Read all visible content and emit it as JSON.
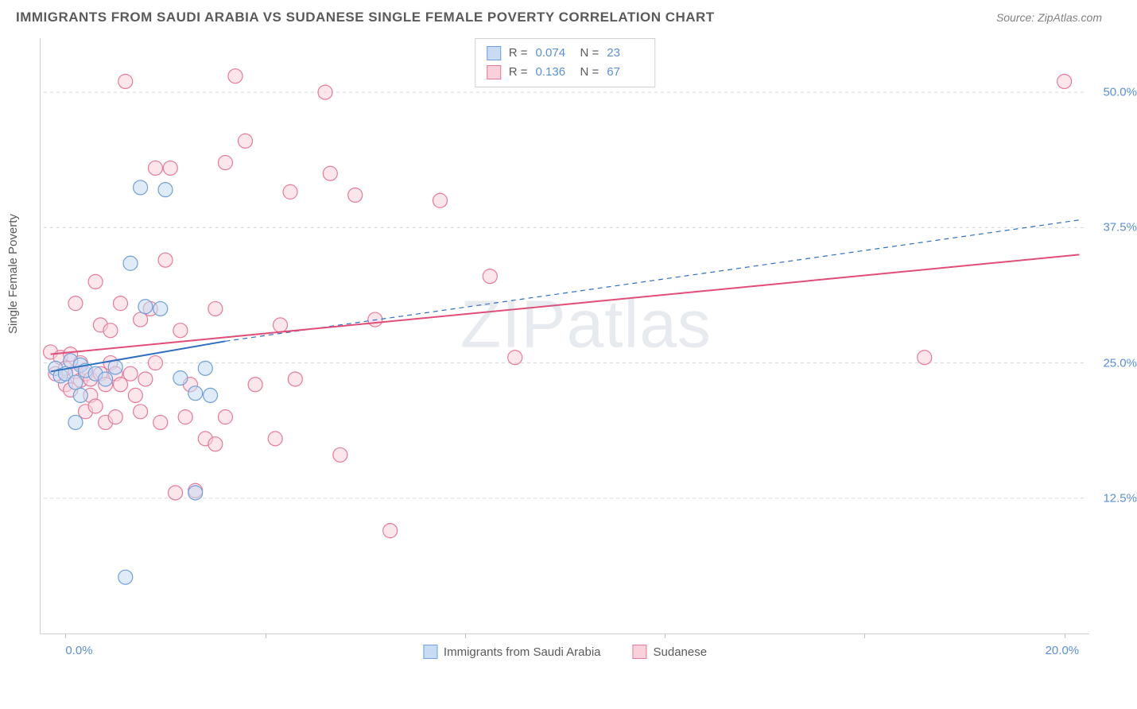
{
  "header": {
    "title": "IMMIGRANTS FROM SAUDI ARABIA VS SUDANESE SINGLE FEMALE POVERTY CORRELATION CHART",
    "source_prefix": "Source: ",
    "source_name": "ZipAtlas.com"
  },
  "watermark": "ZIPatlas",
  "chart": {
    "type": "scatter",
    "ylabel": "Single Female Poverty",
    "background_color": "#ffffff",
    "grid_color": "#d8d8d8",
    "axis_color": "#d0d0d0",
    "label_color": "#5a5a5a",
    "tick_label_color": "#5b8fd6",
    "title_fontsize": 17,
    "label_fontsize": 15,
    "x_domain": [
      -0.5,
      20.5
    ],
    "y_domain": [
      0,
      55
    ],
    "y_gridlines": [
      12.5,
      25.0,
      37.5,
      50.0
    ],
    "y_tick_labels": [
      "12.5%",
      "25.0%",
      "37.5%",
      "50.0%"
    ],
    "x_ticks": [
      0,
      4,
      8,
      12,
      16,
      20
    ],
    "x_tick_labels": {
      "0": "0.0%",
      "20": "20.0%"
    },
    "point_radius": 9,
    "point_opacity": 0.55,
    "series": [
      {
        "name": "Immigrants from Saudi Arabia",
        "fill": "#c7dbf2",
        "stroke": "#6fa0da",
        "r_value": "0.074",
        "n_value": "23",
        "trend": {
          "solid": {
            "x1": -0.3,
            "y1": 24.2,
            "x2": 3.2,
            "y2": 27.0
          },
          "dashed": {
            "x1": 3.2,
            "y1": 27.0,
            "x2": 20.3,
            "y2": 38.2
          },
          "color": "#2f6fc0",
          "width": 2
        },
        "points": [
          [
            -0.2,
            24.5
          ],
          [
            -0.1,
            23.8
          ],
          [
            0.0,
            24.0
          ],
          [
            0.1,
            25.2
          ],
          [
            0.2,
            23.2
          ],
          [
            0.3,
            24.8
          ],
          [
            0.2,
            19.5
          ],
          [
            0.4,
            24.3
          ],
          [
            0.6,
            24.0
          ],
          [
            0.8,
            23.5
          ],
          [
            1.0,
            24.6
          ],
          [
            1.5,
            41.2
          ],
          [
            2.0,
            41.0
          ],
          [
            1.3,
            34.2
          ],
          [
            1.6,
            30.2
          ],
          [
            1.9,
            30.0
          ],
          [
            2.3,
            23.6
          ],
          [
            2.6,
            22.2
          ],
          [
            2.9,
            22.0
          ],
          [
            2.8,
            24.5
          ],
          [
            1.2,
            5.2
          ],
          [
            2.6,
            13.0
          ],
          [
            0.3,
            22.0
          ]
        ]
      },
      {
        "name": "Sudanese",
        "fill": "#f8d1da",
        "stroke": "#e77a99",
        "r_value": "0.136",
        "n_value": "67",
        "trend": {
          "solid": {
            "x1": -0.3,
            "y1": 25.8,
            "x2": 20.3,
            "y2": 35.0
          },
          "dashed": null,
          "color": "#e24d78",
          "width": 2
        },
        "points": [
          [
            -0.3,
            26.0
          ],
          [
            -0.2,
            24.0
          ],
          [
            -0.1,
            25.5
          ],
          [
            0.0,
            23.0
          ],
          [
            0.0,
            24.5
          ],
          [
            0.1,
            25.8
          ],
          [
            0.1,
            22.5
          ],
          [
            0.2,
            24.2
          ],
          [
            0.2,
            30.5
          ],
          [
            0.3,
            23.4
          ],
          [
            0.3,
            25.0
          ],
          [
            0.4,
            20.5
          ],
          [
            0.4,
            24.0
          ],
          [
            0.5,
            22.0
          ],
          [
            0.5,
            23.5
          ],
          [
            0.6,
            32.5
          ],
          [
            0.6,
            21.0
          ],
          [
            0.7,
            24.0
          ],
          [
            0.7,
            28.5
          ],
          [
            0.8,
            19.5
          ],
          [
            0.8,
            23.0
          ],
          [
            0.9,
            25.0
          ],
          [
            0.9,
            28.0
          ],
          [
            1.0,
            20.0
          ],
          [
            1.0,
            24.0
          ],
          [
            1.1,
            30.5
          ],
          [
            1.1,
            23.0
          ],
          [
            1.2,
            51.0
          ],
          [
            1.3,
            24.0
          ],
          [
            1.4,
            22.0
          ],
          [
            1.5,
            20.5
          ],
          [
            1.5,
            29.0
          ],
          [
            1.6,
            23.5
          ],
          [
            1.7,
            30.0
          ],
          [
            1.8,
            25.0
          ],
          [
            1.8,
            43.0
          ],
          [
            1.9,
            19.5
          ],
          [
            2.0,
            34.5
          ],
          [
            2.1,
            43.0
          ],
          [
            2.2,
            13.0
          ],
          [
            2.3,
            28.0
          ],
          [
            2.4,
            20.0
          ],
          [
            2.5,
            23.0
          ],
          [
            2.6,
            13.2
          ],
          [
            2.8,
            18.0
          ],
          [
            3.0,
            17.5
          ],
          [
            3.0,
            30.0
          ],
          [
            3.2,
            20.0
          ],
          [
            3.2,
            43.5
          ],
          [
            3.4,
            51.5
          ],
          [
            3.6,
            45.5
          ],
          [
            3.8,
            23.0
          ],
          [
            4.2,
            18.0
          ],
          [
            4.3,
            28.5
          ],
          [
            4.5,
            40.8
          ],
          [
            4.6,
            23.5
          ],
          [
            5.2,
            50.0
          ],
          [
            5.3,
            42.5
          ],
          [
            5.5,
            16.5
          ],
          [
            5.8,
            40.5
          ],
          [
            6.2,
            29.0
          ],
          [
            6.5,
            9.5
          ],
          [
            7.5,
            40.0
          ],
          [
            8.5,
            33.0
          ],
          [
            9.0,
            25.5
          ],
          [
            17.2,
            25.5
          ],
          [
            20.0,
            51.0
          ]
        ]
      }
    ],
    "legend_top": {
      "r_label": "R =",
      "n_label": "N ="
    },
    "legend_bottom_labels": [
      "Immigrants from Saudi Arabia",
      "Sudanese"
    ]
  }
}
